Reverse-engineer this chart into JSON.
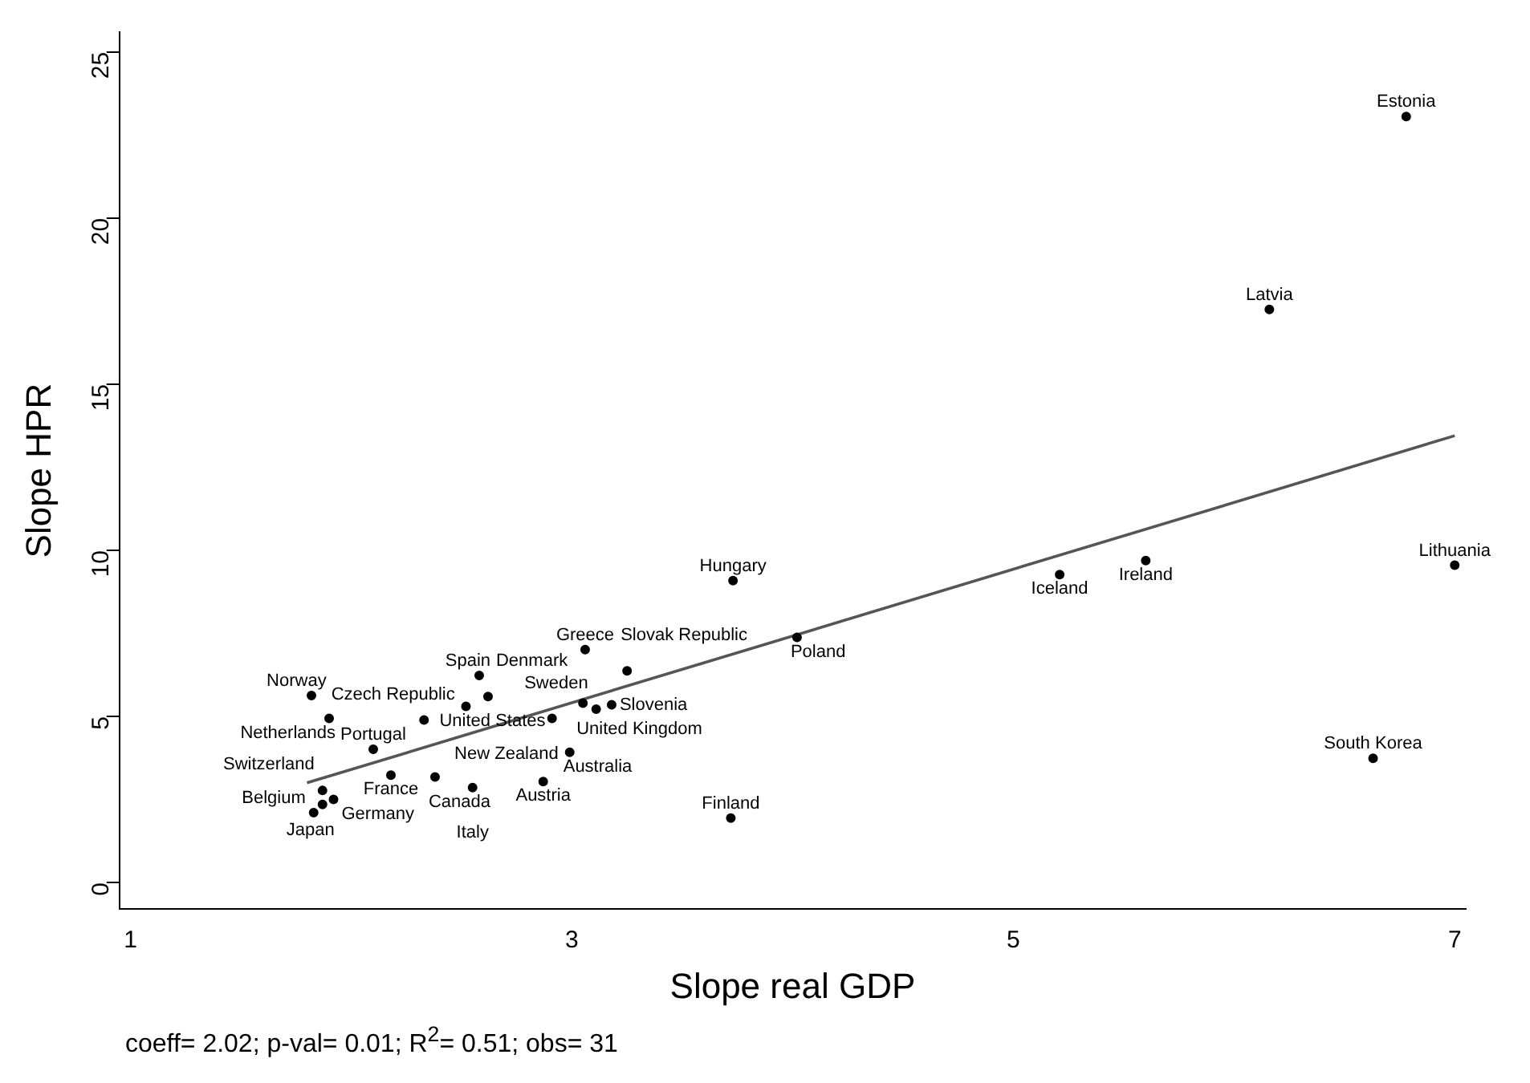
{
  "chart_data": {
    "type": "scatter",
    "xlabel": "Slope real GDP",
    "ylabel": "Slope HPR",
    "xlim": [
      0.95,
      7.05
    ],
    "ylim": [
      -0.8,
      25.6
    ],
    "xticks": [
      1,
      3,
      5,
      7
    ],
    "yticks": [
      0,
      5,
      10,
      15,
      20,
      25
    ],
    "grid": false,
    "legend": false,
    "marker": "circle",
    "series": [
      {
        "type": "scatter",
        "color": "#000000",
        "x": [
          6.78,
          6.16,
          7.0,
          5.6,
          5.21,
          3.73,
          4.02,
          6.63,
          3.72,
          3.06,
          3.25,
          2.58,
          2.62,
          3.05,
          2.52,
          3.18,
          3.11,
          2.91,
          2.33,
          1.82,
          1.9,
          2.1,
          2.18,
          2.38,
          2.55,
          2.87,
          2.99,
          1.87,
          1.92,
          1.87,
          1.83
        ],
        "values": [
          23.06,
          17.25,
          9.55,
          9.69,
          9.27,
          9.09,
          7.38,
          3.74,
          1.94,
          7.01,
          6.37,
          6.23,
          5.6,
          5.4,
          5.3,
          5.35,
          5.22,
          4.94,
          4.89,
          5.63,
          4.94,
          4.01,
          3.23,
          3.18,
          2.86,
          3.04,
          3.92,
          2.77,
          2.5,
          2.35,
          2.1
        ]
      },
      {
        "type": "line",
        "color": "#555555",
        "marker": "none",
        "line_style": "solid",
        "x": [
          1.8,
          7.0
        ],
        "values": [
          3.0,
          13.45
        ]
      }
    ],
    "annotations": [
      {
        "text": "Estonia",
        "x": 6.78,
        "y": 23.06
      },
      {
        "text": "Latvia",
        "x": 6.16,
        "y": 17.25
      },
      {
        "text": "Lithuania",
        "x": 7.0,
        "y": 9.55
      },
      {
        "text": "Ireland",
        "x": 5.6,
        "y": 9.69
      },
      {
        "text": "Iceland",
        "x": 5.21,
        "y": 9.27
      },
      {
        "text": "Hungary",
        "x": 3.73,
        "y": 9.09
      },
      {
        "text": "Poland",
        "x": 4.02,
        "y": 7.38
      },
      {
        "text": "South Korea",
        "x": 6.63,
        "y": 3.74
      },
      {
        "text": "Finland",
        "x": 3.72,
        "y": 1.94
      },
      {
        "text": "Greece",
        "x": 3.06,
        "y": 7.01
      },
      {
        "text": "Slovak Republic",
        "x": 3.25,
        "y": 6.37
      },
      {
        "text": "Spain",
        "x": 2.58,
        "y": 6.23
      },
      {
        "text": "Denmark",
        "x": 2.62,
        "y": 5.6
      },
      {
        "text": "United Kingdom",
        "x": 3.05,
        "y": 5.4
      },
      {
        "text": "United States",
        "x": 2.52,
        "y": 5.3
      },
      {
        "text": "Slovenia",
        "x": 3.18,
        "y": 5.35
      },
      {
        "text": "Sweden",
        "x": 3.11,
        "y": 5.22
      },
      {
        "text": "New Zealand",
        "x": 2.91,
        "y": 4.94
      },
      {
        "text": "Czech Republic",
        "x": 2.33,
        "y": 4.89
      },
      {
        "text": "Norway",
        "x": 1.82,
        "y": 5.63
      },
      {
        "text": "Netherlands",
        "x": 1.9,
        "y": 4.94
      },
      {
        "text": "Portugal",
        "x": 2.1,
        "y": 4.01
      },
      {
        "text": "France",
        "x": 2.18,
        "y": 3.23
      },
      {
        "text": "Canada",
        "x": 2.38,
        "y": 3.18
      },
      {
        "text": "Italy",
        "x": 2.55,
        "y": 2.86
      },
      {
        "text": "Austria",
        "x": 2.87,
        "y": 3.04
      },
      {
        "text": "Australia",
        "x": 2.99,
        "y": 3.92
      },
      {
        "text": "Switzerland",
        "x": 1.87,
        "y": 2.77
      },
      {
        "text": "Germany",
        "x": 1.92,
        "y": 2.5
      },
      {
        "text": "Japan",
        "x": 1.87,
        "y": 2.35
      },
      {
        "text": "Belgium",
        "x": 1.83,
        "y": 2.1
      },
      "coeff= 2.02; p-val= 0.01; R$^{2}$= 0.51; obs=   31"
    ]
  }
}
